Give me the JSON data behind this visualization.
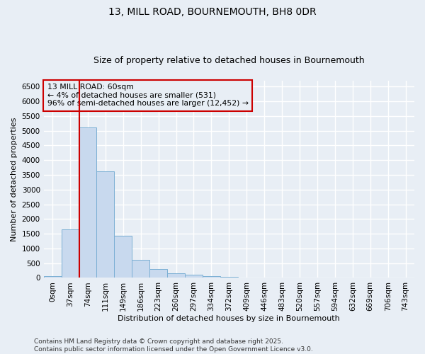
{
  "title1": "13, MILL ROAD, BOURNEMOUTH, BH8 0DR",
  "title2": "Size of property relative to detached houses in Bournemouth",
  "xlabel": "Distribution of detached houses by size in Bournemouth",
  "ylabel": "Number of detached properties",
  "footer1": "Contains HM Land Registry data © Crown copyright and database right 2025.",
  "footer2": "Contains public sector information licensed under the Open Government Licence v3.0.",
  "annotation_line1": "13 MILL ROAD: 60sqm",
  "annotation_line2": "← 4% of detached houses are smaller (531)",
  "annotation_line3": "96% of semi-detached houses are larger (12,452) →",
  "bar_labels": [
    "0sqm",
    "37sqm",
    "74sqm",
    "111sqm",
    "149sqm",
    "186sqm",
    "223sqm",
    "260sqm",
    "297sqm",
    "334sqm",
    "372sqm",
    "409sqm",
    "446sqm",
    "483sqm",
    "520sqm",
    "557sqm",
    "594sqm",
    "632sqm",
    "669sqm",
    "706sqm",
    "743sqm"
  ],
  "bar_values": [
    60,
    1650,
    5100,
    3620,
    1420,
    610,
    310,
    160,
    100,
    70,
    40,
    10,
    0,
    0,
    0,
    0,
    0,
    0,
    0,
    0,
    0
  ],
  "bar_color": "#c8d9ee",
  "bar_edge_color": "#7bafd4",
  "property_line_x": 1.5,
  "property_line_color": "#cc0000",
  "ylim": [
    0,
    6700
  ],
  "yticks": [
    0,
    500,
    1000,
    1500,
    2000,
    2500,
    3000,
    3500,
    4000,
    4500,
    5000,
    5500,
    6000,
    6500
  ],
  "bg_color": "#e8eef5",
  "grid_color": "white",
  "annotation_box_color": "#cc0000",
  "title1_fontsize": 10,
  "title2_fontsize": 9,
  "axis_label_fontsize": 8,
  "tick_fontsize": 7.5,
  "footer_fontsize": 6.5
}
